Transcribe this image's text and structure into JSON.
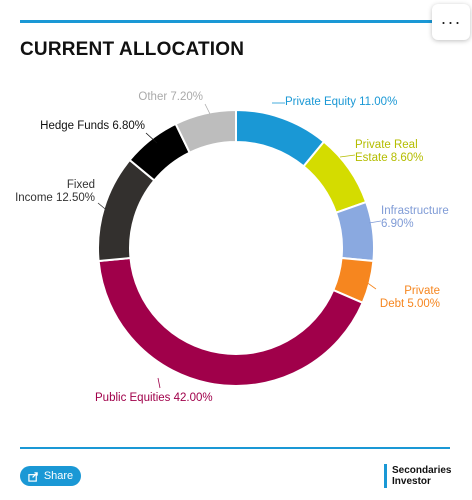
{
  "menu": {
    "icon": "more-horizontal-icon",
    "label": "···"
  },
  "logo": {
    "line1": "Secondaries",
    "line2": "Investor"
  },
  "share": {
    "label": "Share",
    "icon": "share-icon"
  },
  "colors": {
    "accent": "#1a98d5"
  },
  "chart_data": {
    "type": "pie",
    "style": "donut",
    "title": "CURRENT ALLOCATION",
    "unit": "%",
    "slices": [
      {
        "label": "Private Equity",
        "value": 11.0,
        "value_text": "11.00%",
        "color": "#1a98d5"
      },
      {
        "label": "Private Real Estate",
        "value": 8.6,
        "value_text": "8.60%",
        "color": "#d4dc00"
      },
      {
        "label": "Infrastructure",
        "value": 6.9,
        "value_text": "6.90%",
        "color": "#8aa9e0"
      },
      {
        "label": "Private Debt",
        "value": 5.0,
        "value_text": "5.00%",
        "color": "#f6861f"
      },
      {
        "label": "Public Equities",
        "value": 42.0,
        "value_text": "42.00%",
        "color": "#a0004a"
      },
      {
        "label": "Fixed Income",
        "value": 12.5,
        "value_text": "12.50%",
        "color": "#33302e"
      },
      {
        "label": "Hedge Funds",
        "value": 6.8,
        "value_text": "6.80%",
        "color": "#000000"
      },
      {
        "label": "Other",
        "value": 7.2,
        "value_text": "7.20%",
        "color": "#bdbdbd"
      }
    ]
  }
}
